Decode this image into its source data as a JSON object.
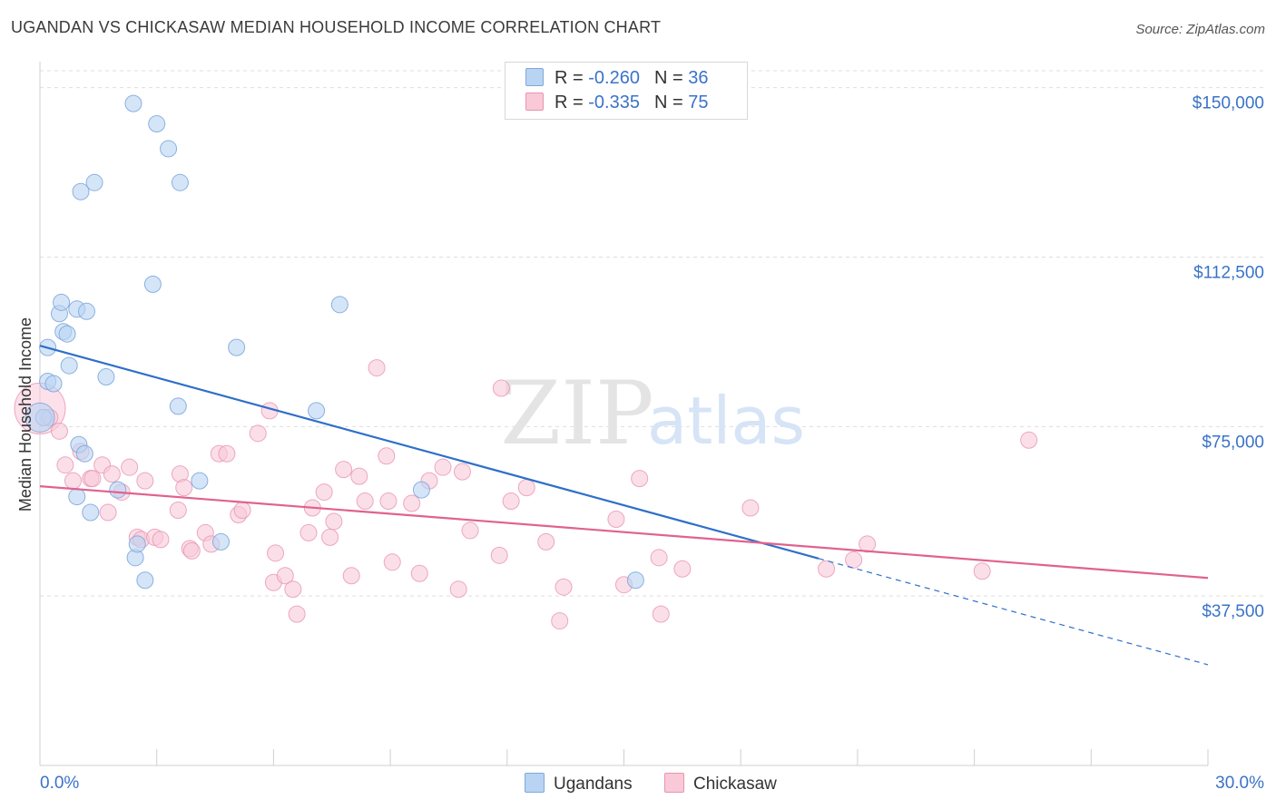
{
  "header": {
    "title": "UGANDAN VS CHICKASAW MEDIAN HOUSEHOLD INCOME CORRELATION CHART",
    "source": "Source: ZipAtlas.com"
  },
  "watermark": {
    "zip": "ZIP",
    "atlas": "atlas"
  },
  "legend_top": {
    "rows": [
      {
        "r_label": "R =",
        "r_value": "-0.260",
        "n_label": "N =",
        "n_value": "36"
      },
      {
        "r_label": "R =",
        "r_value": "-0.335",
        "n_label": "N =",
        "n_value": "75"
      }
    ]
  },
  "legend_bottom": {
    "items": [
      "Ugandans",
      "Chickasaw"
    ]
  },
  "colors": {
    "blue_fill": "#b9d3f3",
    "blue_stroke": "#7fa8dc",
    "blue_line": "#2e6fc9",
    "pink_fill": "#f9c9d8",
    "pink_stroke": "#e993b1",
    "pink_line": "#e0628f",
    "tick_label": "#3a73c8",
    "grid": "#dddddd"
  },
  "chart_data": {
    "type": "scatter",
    "title": "UGANDAN VS CHICKASAW MEDIAN HOUSEHOLD INCOME CORRELATION CHART",
    "xlabel": "",
    "ylabel": "Median Household Income",
    "xlim": [
      0,
      30
    ],
    "ylim": [
      0,
      153750
    ],
    "x_tick_labels": [
      "0.0%",
      "30.0%"
    ],
    "y_ticks": [
      37500,
      75000,
      112500,
      150000
    ],
    "y_tick_labels": [
      "$37,500",
      "$75,000",
      "$112,500",
      "$150,000"
    ],
    "grid": true,
    "legend_position": "top-center",
    "series": [
      {
        "name": "Ugandans",
        "r": -0.26,
        "n": 36,
        "trend": {
          "x0": 0,
          "y0": 92900,
          "x1": 20,
          "y1": 45800,
          "dash_to_x": 30,
          "dash_to_y": 22300
        },
        "points": [
          [
            0.1,
            77000
          ],
          [
            0.2,
            85000
          ],
          [
            0.2,
            92500
          ],
          [
            0.35,
            84500
          ],
          [
            0.5,
            100000
          ],
          [
            0.55,
            102500
          ],
          [
            0.6,
            96000
          ],
          [
            0.7,
            95500
          ],
          [
            0.75,
            88500
          ],
          [
            0.95,
            101000
          ],
          [
            1.0,
            71000
          ],
          [
            1.05,
            127000
          ],
          [
            1.15,
            69000
          ],
          [
            1.2,
            100500
          ],
          [
            1.3,
            56000
          ],
          [
            1.4,
            129000
          ],
          [
            0.95,
            59500
          ],
          [
            1.7,
            86000
          ],
          [
            2.0,
            61000
          ],
          [
            2.4,
            146500
          ],
          [
            2.45,
            46000
          ],
          [
            2.5,
            49000
          ],
          [
            2.7,
            41000
          ],
          [
            2.9,
            106500
          ],
          [
            3.0,
            142000
          ],
          [
            3.3,
            136500
          ],
          [
            3.6,
            129000
          ],
          [
            3.55,
            79500
          ],
          [
            4.1,
            63000
          ],
          [
            4.65,
            49500
          ],
          [
            5.05,
            92500
          ],
          [
            7.1,
            78500
          ],
          [
            7.7,
            102000
          ],
          [
            9.8,
            61000
          ],
          [
            15.3,
            41000
          ],
          [
            0.0,
            77000
          ]
        ]
      },
      {
        "name": "Chickasaw",
        "r": -0.335,
        "n": 75,
        "trend": {
          "x0": 0,
          "y0": 61800,
          "x1": 30,
          "y1": 41500
        },
        "points": [
          [
            0.0,
            79000
          ],
          [
            0.25,
            77000
          ],
          [
            0.5,
            74000
          ],
          [
            0.65,
            66500
          ],
          [
            0.85,
            63000
          ],
          [
            1.05,
            69500
          ],
          [
            1.3,
            63500
          ],
          [
            1.35,
            63500
          ],
          [
            1.6,
            66500
          ],
          [
            1.75,
            56000
          ],
          [
            1.85,
            64500
          ],
          [
            2.1,
            60500
          ],
          [
            2.3,
            66000
          ],
          [
            2.5,
            50500
          ],
          [
            2.6,
            50000
          ],
          [
            2.7,
            63000
          ],
          [
            2.95,
            50500
          ],
          [
            3.1,
            50000
          ],
          [
            3.55,
            56500
          ],
          [
            3.6,
            64500
          ],
          [
            3.7,
            61500
          ],
          [
            3.85,
            48000
          ],
          [
            3.9,
            47500
          ],
          [
            4.25,
            51500
          ],
          [
            4.4,
            49000
          ],
          [
            4.6,
            69000
          ],
          [
            4.8,
            69000
          ],
          [
            5.1,
            55500
          ],
          [
            5.2,
            56500
          ],
          [
            5.6,
            73500
          ],
          [
            5.9,
            78500
          ],
          [
            6.0,
            40500
          ],
          [
            6.05,
            47000
          ],
          [
            6.3,
            42000
          ],
          [
            6.5,
            39000
          ],
          [
            6.6,
            33500
          ],
          [
            6.9,
            51500
          ],
          [
            7.0,
            57000
          ],
          [
            7.3,
            60500
          ],
          [
            7.45,
            50500
          ],
          [
            7.55,
            54000
          ],
          [
            7.8,
            65500
          ],
          [
            8.0,
            42000
          ],
          [
            8.2,
            64000
          ],
          [
            8.35,
            58500
          ],
          [
            8.65,
            88000
          ],
          [
            8.9,
            68500
          ],
          [
            8.95,
            58500
          ],
          [
            9.05,
            45000
          ],
          [
            9.55,
            58000
          ],
          [
            9.75,
            42500
          ],
          [
            10.0,
            63000
          ],
          [
            10.35,
            66000
          ],
          [
            10.75,
            39000
          ],
          [
            10.85,
            65000
          ],
          [
            11.05,
            52000
          ],
          [
            11.8,
            46500
          ],
          [
            11.85,
            83500
          ],
          [
            12.1,
            58500
          ],
          [
            12.5,
            61500
          ],
          [
            13.0,
            49500
          ],
          [
            13.35,
            32000
          ],
          [
            13.45,
            39500
          ],
          [
            14.8,
            54500
          ],
          [
            15.0,
            40000
          ],
          [
            15.4,
            63500
          ],
          [
            15.9,
            46000
          ],
          [
            15.95,
            33500
          ],
          [
            16.5,
            43500
          ],
          [
            18.25,
            57000
          ],
          [
            20.2,
            43500
          ],
          [
            20.9,
            45500
          ],
          [
            21.25,
            49000
          ],
          [
            24.2,
            43000
          ],
          [
            25.4,
            72000
          ]
        ]
      }
    ]
  }
}
